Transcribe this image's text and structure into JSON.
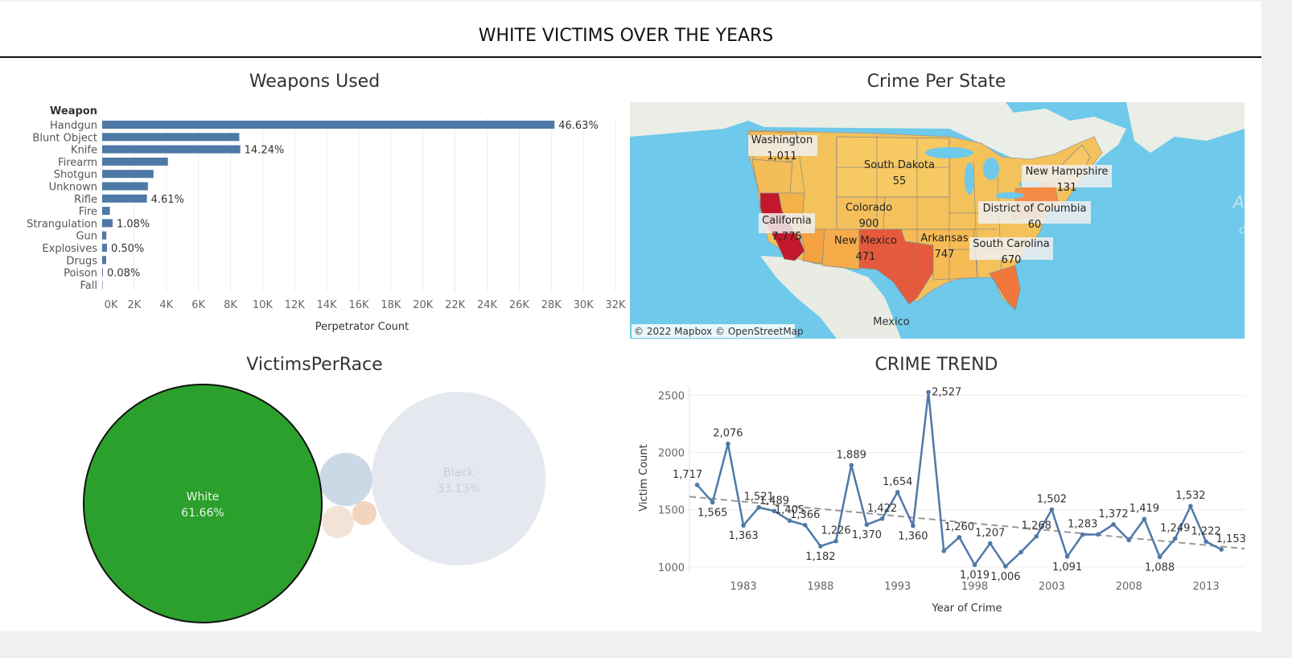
{
  "dashboard_title": "WHITE VICTIMS OVER THE YEARS",
  "weapons": {
    "title": "Weapons Used",
    "header": "Weapon",
    "xlabel": "Perpetrator Count",
    "ticks": [
      "0K",
      "2K",
      "4K",
      "6K",
      "8K",
      "10K",
      "12K",
      "14K",
      "16K",
      "18K",
      "20K",
      "22K",
      "24K",
      "26K",
      "28K",
      "30K",
      "32K"
    ]
  },
  "map": {
    "title": "Crime Per State",
    "attribution": "© 2022 Mapbox © OpenStreetMap",
    "country_label": "Mexico",
    "states": [
      {
        "name": "Washington",
        "value": "1,011"
      },
      {
        "name": "South Dakota",
        "value": "55"
      },
      {
        "name": "New Hampshire",
        "value": "131"
      },
      {
        "name": "California",
        "value": "7,775"
      },
      {
        "name": "Colorado",
        "value": "900"
      },
      {
        "name": "District of Columbia",
        "value": "60"
      },
      {
        "name": "New Mexico",
        "value": "471"
      },
      {
        "name": "Arkansas",
        "value": "747"
      },
      {
        "name": "South Carolina",
        "value": "670"
      }
    ]
  },
  "race": {
    "title": "VictimsPerRace",
    "bubbles": [
      {
        "label": "White",
        "pct": "61.66%",
        "color": "#2ca02c"
      },
      {
        "label": "Black",
        "pct": "33.13%",
        "color": "#e5e9ef"
      }
    ]
  },
  "trend": {
    "title": "CRIME TREND",
    "xlabel": "Year of Crime",
    "ylabel": "Victim Count"
  },
  "colors": {
    "bar": "#4e79a7",
    "line": "#4e79a7",
    "trendline": "#999999",
    "white_bubble": "#2ca02c",
    "water": "#6ec9ea"
  },
  "chart_data": [
    {
      "type": "bar",
      "orientation": "horizontal",
      "title": "Weapons Used",
      "ylabel": "Weapon",
      "xlabel": "Perpetrator Count",
      "xlim": [
        0,
        32000
      ],
      "categories": [
        "Handgun",
        "Blunt Object",
        "Knife",
        "Firearm",
        "Shotgun",
        "Unknown",
        "Rifle",
        "Fire",
        "Strangulation",
        "Gun",
        "Explosives",
        "Drugs",
        "Poison",
        "Fall"
      ],
      "values": [
        28200,
        8550,
        8610,
        4100,
        3200,
        2850,
        2790,
        480,
        650,
        260,
        300,
        250,
        48,
        8
      ],
      "data_labels": {
        "Handgun": "46.63%",
        "Knife": "14.24%",
        "Rifle": "4.61%",
        "Strangulation": "1.08%",
        "Explosives": "0.50%",
        "Poison": "0.08%"
      }
    },
    {
      "type": "line",
      "title": "CRIME TREND",
      "xlabel": "Year of Crime",
      "ylabel": "Victim Count",
      "ylim": [
        950,
        2580
      ],
      "xlim": [
        1979.5,
        2015.5
      ],
      "x_ticks": [
        1983,
        1988,
        1993,
        1998,
        2003,
        2008,
        2013
      ],
      "y_ticks": [
        1000,
        1500,
        2000,
        2500
      ],
      "x": [
        1980,
        1981,
        1982,
        1983,
        1984,
        1985,
        1986,
        1987,
        1988,
        1989,
        1990,
        1991,
        1992,
        1993,
        1994,
        1995,
        1996,
        1997,
        1998,
        1999,
        2000,
        2001,
        2002,
        2003,
        2004,
        2005,
        2006,
        2007,
        2008,
        2009,
        2010,
        2011,
        2012,
        2013,
        2014
      ],
      "values": [
        1717,
        1565,
        2076,
        1363,
        1521,
        1489,
        1405,
        1366,
        1182,
        1226,
        1889,
        1370,
        1422,
        1654,
        1360,
        2527,
        1140,
        1260,
        1019,
        1207,
        1006,
        1130,
        1268,
        1502,
        1091,
        1283,
        1285,
        1372,
        1235,
        1419,
        1088,
        1249,
        1532,
        1222,
        1153
      ],
      "labels": [
        "1,717",
        "1,565",
        "2,076",
        "1,363",
        "1,521",
        "1,489",
        "1,405",
        "1,366",
        "1,182",
        "1,226",
        "1,889",
        "1,370",
        "1,422",
        "1,654",
        "1,360",
        "2,527",
        "",
        "1,260",
        "1,019",
        "1,207",
        "1,006",
        "",
        "1,268",
        "1,502",
        "1,091",
        "1,283",
        "",
        "1,372",
        "",
        "1,419",
        "1,088",
        "1,249",
        "1,532",
        "1,222",
        "1,153"
      ],
      "trendline": {
        "start": [
          1979.5,
          1615
        ],
        "end": [
          2015.5,
          1160
        ]
      }
    },
    {
      "type": "bubble",
      "title": "VictimsPerRace",
      "series": [
        {
          "name": "White",
          "pct": 61.66
        },
        {
          "name": "Black",
          "pct": 33.13
        },
        {
          "name": "",
          "pct": 3.5
        },
        {
          "name": "",
          "pct": 1.2
        },
        {
          "name": "",
          "pct": 0.5
        }
      ]
    }
  ]
}
